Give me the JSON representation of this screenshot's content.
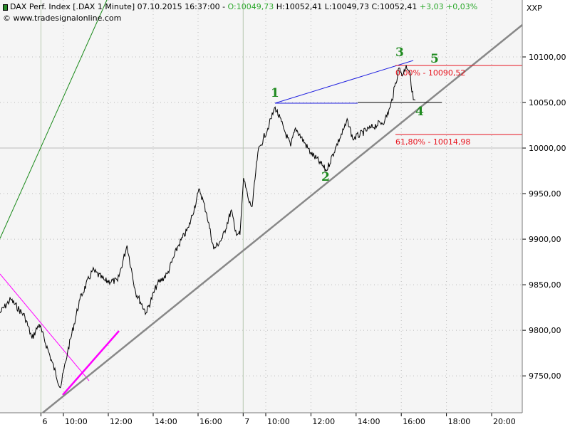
{
  "header": {
    "title": "DAX Perf. Index [.DAX  1 Minute] 07.10.2015 16:37:00 -",
    "open": "O:10049,73",
    "hlc": "H:10052,41 L:10049,73 C:10052,41",
    "change": "+3,03 +0,03%",
    "source": "© www.tradesignalonline.com",
    "symbol_tag": "XXP"
  },
  "chart_data": {
    "type": "line",
    "title": "DAX Perf. Index [.DAX  1 Minute]",
    "ylim": [
      9705,
      10135
    ],
    "y_ticks": [
      "10100,00",
      "10050,00",
      "10000,00",
      "9950,00",
      "9900,00",
      "9850,00",
      "9800,00",
      "9750,00"
    ],
    "y_tick_values": [
      10100,
      10050,
      10000,
      9950,
      9900,
      9850,
      9800,
      9750
    ],
    "x_ticks": [
      {
        "label": "6",
        "time": "06 09:00"
      },
      {
        "label": "10:00",
        "time": "06 10:00"
      },
      {
        "label": "12:00",
        "time": "06 12:00"
      },
      {
        "label": "14:00",
        "time": "06 14:00"
      },
      {
        "label": "16:00",
        "time": "06 16:00"
      },
      {
        "label": "7",
        "time": "07 09:00"
      },
      {
        "label": "10:00",
        "time": "07 10:00"
      },
      {
        "label": "12:00",
        "time": "07 12:00"
      },
      {
        "label": "14:00",
        "time": "07 14:00"
      },
      {
        "label": "16:00",
        "time": "07 16:00"
      },
      {
        "label": "18:00",
        "time": "07 18:00"
      },
      {
        "label": "20:00",
        "time": "07 20:00"
      }
    ],
    "grid": true,
    "series": [
      {
        "color": "#000000",
        "points": [
          [
            "06 07:10",
            9819
          ],
          [
            "06 07:39",
            9834
          ],
          [
            "06 08:17",
            9815
          ],
          [
            "06 08:36",
            9791
          ],
          [
            "06 08:55",
            9807
          ],
          [
            "06 09:24",
            9772
          ],
          [
            "06 09:52",
            9737
          ],
          [
            "06 10:11",
            9776
          ],
          [
            "06 10:44",
            9834
          ],
          [
            "06 11:18",
            9866
          ],
          [
            "06 11:52",
            9854
          ],
          [
            "06 12:25",
            9854
          ],
          [
            "06 12:50",
            9893
          ],
          [
            "06 13:13",
            9842
          ],
          [
            "06 13:41",
            9819
          ],
          [
            "06 14:10",
            9850
          ],
          [
            "06 14:38",
            9862
          ],
          [
            "06 15:07",
            9893
          ],
          [
            "06 15:35",
            9913
          ],
          [
            "06 16:04",
            9955
          ],
          [
            "06 16:23",
            9928
          ],
          [
            "06 16:42",
            9889
          ],
          [
            "06 17:05",
            9901
          ],
          [
            "06 17:29",
            9932
          ],
          [
            "06 17:39",
            9909
          ],
          [
            "06 17:52",
            9905
          ],
          [
            "07 09:01",
            9967
          ],
          [
            "07 09:16",
            9940
          ],
          [
            "07 09:24",
            9936
          ],
          [
            "07 09:39",
            9995
          ],
          [
            "07 10:09",
            10026
          ],
          [
            "07 10:25",
            10045
          ],
          [
            "07 10:51",
            10018
          ],
          [
            "07 11:06",
            10002
          ],
          [
            "07 11:19",
            10022
          ],
          [
            "07 11:59",
            9995
          ],
          [
            "07 12:26",
            9983
          ],
          [
            "07 12:41",
            9975
          ],
          [
            "07 13:07",
            10002
          ],
          [
            "07 13:38",
            10030
          ],
          [
            "07 13:51",
            10010
          ],
          [
            "07 14:38",
            10022
          ],
          [
            "07 15:16",
            10030
          ],
          [
            "07 15:31",
            10045
          ],
          [
            "07 15:54",
            10088
          ],
          [
            "07 16:04",
            10080
          ],
          [
            "07 16:13",
            10091
          ],
          [
            "07 16:22",
            10084
          ],
          [
            "07 16:32",
            10053
          ],
          [
            "07 16:37",
            10052.41
          ]
        ]
      }
    ],
    "annotations": {
      "waves": [
        "1",
        "2",
        "3",
        "4",
        "5"
      ],
      "fib_levels": [
        {
          "label": "0,00% - 10090,52",
          "value": 10090.52,
          "color": "#e8141e"
        },
        {
          "label": "61,80% - 10014,98",
          "value": 10014.98,
          "color": "#e8141e"
        }
      ],
      "line_colors": {
        "trend": "#888888",
        "channel": "#2020e0",
        "upper": "#1a8a1a",
        "pink": "#ff00ff"
      }
    }
  }
}
